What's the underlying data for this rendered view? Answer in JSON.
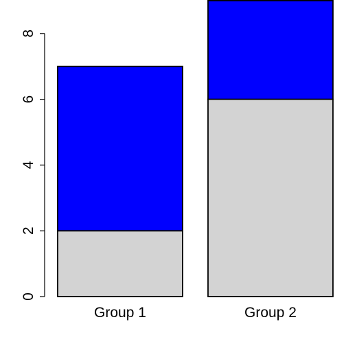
{
  "chart_data": {
    "type": "bar",
    "stacked": true,
    "categories": [
      "Group 1",
      "Group 2"
    ],
    "series": [
      {
        "values": [
          2,
          6
        ],
        "color": "#d3d3d3"
      },
      {
        "values": [
          5,
          3
        ],
        "color": "#0000ff"
      }
    ],
    "ylim": [
      0,
      9
    ],
    "yticks": [
      0,
      2,
      4,
      6,
      8
    ],
    "ytick_labels": [
      "0",
      "2",
      "4",
      "6",
      "8"
    ],
    "title": "",
    "xlabel": "",
    "ylabel": "",
    "grid": false,
    "legend": "none"
  }
}
